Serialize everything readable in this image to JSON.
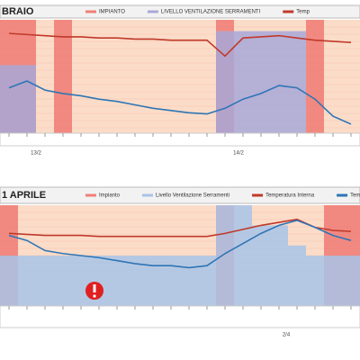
{
  "chart_data": [
    {
      "type": "combo",
      "title": "BRAIO",
      "categories": [
        null,
        null,
        null,
        null,
        null,
        null,
        null,
        null,
        null,
        null,
        null,
        null,
        null,
        null,
        null,
        null,
        null,
        null,
        null,
        null
      ],
      "group_labels": [
        "13/2",
        "14/2"
      ],
      "ylim": [
        0,
        100
      ],
      "series": [
        {
          "name": "IMPIANTO",
          "kind": "band",
          "color": "#f07f78",
          "values": [
            100,
            100,
            0,
            100,
            0,
            0,
            0,
            0,
            0,
            0,
            0,
            0,
            100,
            0,
            0,
            0,
            0,
            100,
            0,
            0
          ]
        },
        {
          "name": "LIVELLO VENTILAZIONE SERRAMENTI",
          "kind": "area",
          "color": "#a8a8d8",
          "values": [
            60,
            60,
            0,
            0,
            0,
            0,
            0,
            0,
            0,
            0,
            0,
            0,
            90,
            90,
            90,
            90,
            90,
            0,
            0,
            0
          ]
        },
        {
          "name": "Temp",
          "kind": "line",
          "color": "#c0392b",
          "values": [
            88,
            87,
            86,
            85,
            85,
            84,
            84,
            83,
            83,
            82,
            82,
            82,
            68,
            84,
            85,
            86,
            84,
            82,
            81,
            80
          ]
        },
        {
          "kind": "line",
          "color": "#2e75b6",
          "values": [
            40,
            46,
            38,
            35,
            33,
            30,
            28,
            25,
            22,
            20,
            18,
            17,
            22,
            30,
            35,
            42,
            40,
            30,
            15,
            8
          ]
        }
      ]
    },
    {
      "type": "combo",
      "title": "1 APRILE",
      "categories": [
        null,
        null,
        null,
        null,
        null,
        null,
        null,
        null,
        null,
        null,
        null,
        null,
        null,
        null,
        null,
        null,
        null,
        null,
        null,
        null
      ],
      "group_labels": [
        "2/4"
      ],
      "ylim": [
        0,
        100
      ],
      "series": [
        {
          "name": "Impianto",
          "kind": "band",
          "color": "#f07f78",
          "values": [
            100,
            0,
            0,
            0,
            0,
            0,
            0,
            0,
            0,
            0,
            0,
            0,
            100,
            0,
            0,
            0,
            0,
            0,
            100,
            100
          ]
        },
        {
          "name": "Livello Ventilazione Serramenti",
          "kind": "area",
          "color": "#a8c4e8",
          "values": [
            50,
            50,
            50,
            50,
            50,
            50,
            50,
            50,
            50,
            50,
            50,
            50,
            100,
            100,
            80,
            80,
            60,
            50,
            50,
            50
          ]
        },
        {
          "name": "Temperatura Interna",
          "kind": "line",
          "color": "#c0392b",
          "values": [
            72,
            71,
            70,
            70,
            70,
            69,
            69,
            69,
            69,
            69,
            69,
            69,
            72,
            76,
            80,
            83,
            86,
            78,
            75,
            74
          ]
        },
        {
          "name": "Tem",
          "kind": "line",
          "color": "#2e75b6",
          "values": [
            70,
            65,
            55,
            52,
            50,
            48,
            45,
            42,
            40,
            40,
            38,
            40,
            52,
            62,
            72,
            80,
            85,
            78,
            70,
            65
          ]
        }
      ]
    }
  ]
}
